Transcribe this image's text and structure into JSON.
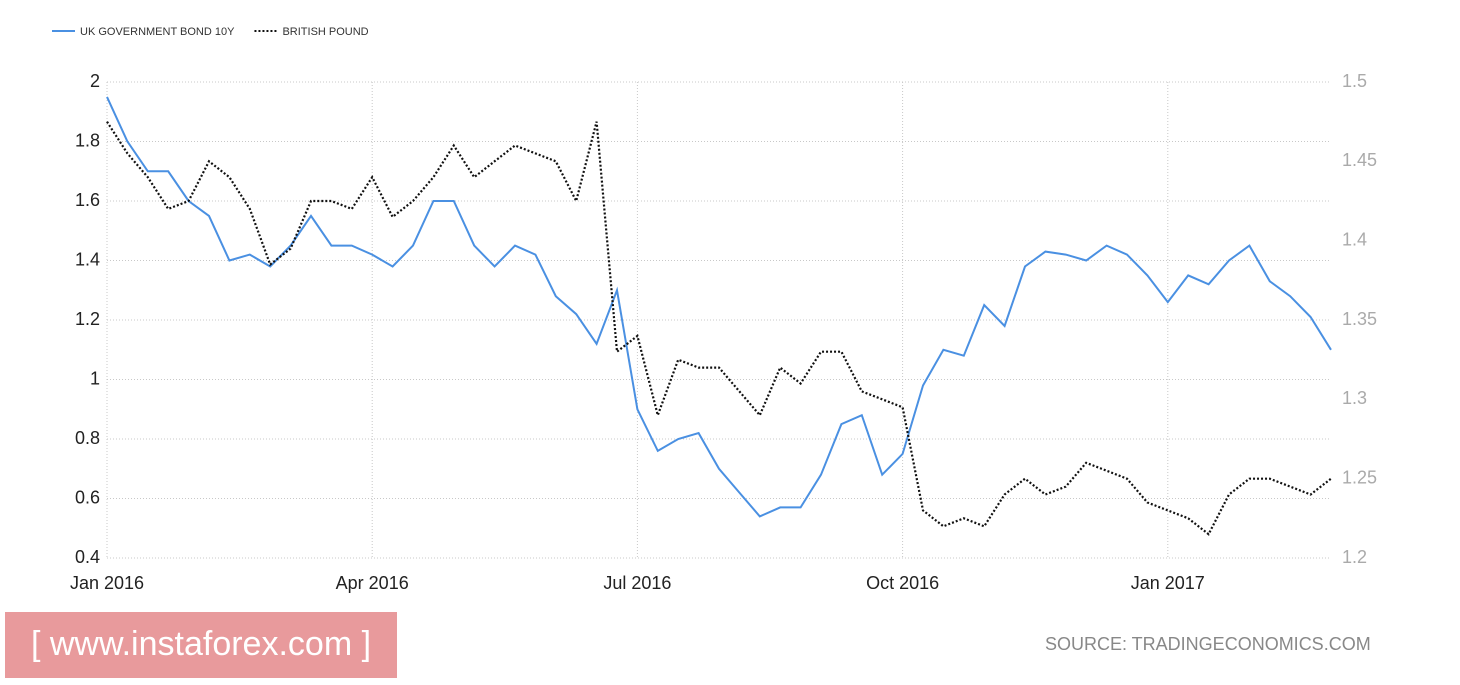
{
  "chart_data": {
    "type": "line",
    "categories": [
      "Jan 2016",
      null,
      null,
      null,
      null,
      null,
      null,
      null,
      null,
      null,
      null,
      null,
      null,
      "Apr 2016",
      null,
      null,
      null,
      null,
      null,
      null,
      null,
      null,
      null,
      null,
      null,
      null,
      "Jul 2016",
      null,
      null,
      null,
      null,
      null,
      null,
      null,
      null,
      null,
      null,
      null,
      null,
      "Oct 2016",
      null,
      null,
      null,
      null,
      null,
      null,
      null,
      null,
      null,
      null,
      null,
      null,
      "Jan 2017",
      null,
      null,
      null,
      null,
      null,
      null,
      null,
      null
    ],
    "series": [
      {
        "name": "UK GOVERNMENT BOND 10Y",
        "color": "#4a90e2",
        "style": "solid",
        "axis": "y",
        "values": [
          1.95,
          1.8,
          1.7,
          1.7,
          1.6,
          1.55,
          1.4,
          1.42,
          1.38,
          1.45,
          1.55,
          1.45,
          1.45,
          1.42,
          1.38,
          1.45,
          1.6,
          1.6,
          1.45,
          1.38,
          1.45,
          1.42,
          1.28,
          1.22,
          1.12,
          1.3,
          0.9,
          0.76,
          0.8,
          0.82,
          0.7,
          0.62,
          0.54,
          0.57,
          0.57,
          0.68,
          0.85,
          0.88,
          0.68,
          0.75,
          0.98,
          1.1,
          1.08,
          1.25,
          1.18,
          1.38,
          1.43,
          1.42,
          1.4,
          1.45,
          1.42,
          1.35,
          1.26,
          1.35,
          1.32,
          1.4,
          1.45,
          1.33,
          1.28,
          1.21,
          1.1
        ]
      },
      {
        "name": "BRITISH POUND",
        "color": "#111111",
        "style": "dotted",
        "axis": "y2",
        "values": [
          1.475,
          1.455,
          1.44,
          1.42,
          1.425,
          1.45,
          1.44,
          1.42,
          1.385,
          1.395,
          1.425,
          1.425,
          1.42,
          1.44,
          1.415,
          1.425,
          1.44,
          1.46,
          1.44,
          1.45,
          1.46,
          1.455,
          1.45,
          1.425,
          1.475,
          1.33,
          1.34,
          1.29,
          1.325,
          1.32,
          1.32,
          1.305,
          1.29,
          1.32,
          1.31,
          1.33,
          1.33,
          1.305,
          1.3,
          1.295,
          1.23,
          1.22,
          1.225,
          1.22,
          1.24,
          1.25,
          1.24,
          1.245,
          1.26,
          1.255,
          1.25,
          1.235,
          1.23,
          1.225,
          1.215,
          1.24,
          1.25,
          1.25,
          1.245,
          1.24,
          1.25
        ]
      }
    ],
    "ylim": [
      0.4,
      2
    ],
    "yticks": [
      0.4,
      0.6,
      0.8,
      1,
      1.2,
      1.4,
      1.6,
      1.8,
      2
    ],
    "y2lim": [
      1.2,
      1.5
    ],
    "y2ticks": [
      1.2,
      1.25,
      1.3,
      1.35,
      1.4,
      1.45,
      1.5
    ],
    "grid": true,
    "legend": "top-left",
    "watermark": "[ www.instaforex.com ]",
    "source": "SOURCE: TRADINGECONOMICS.COM"
  }
}
